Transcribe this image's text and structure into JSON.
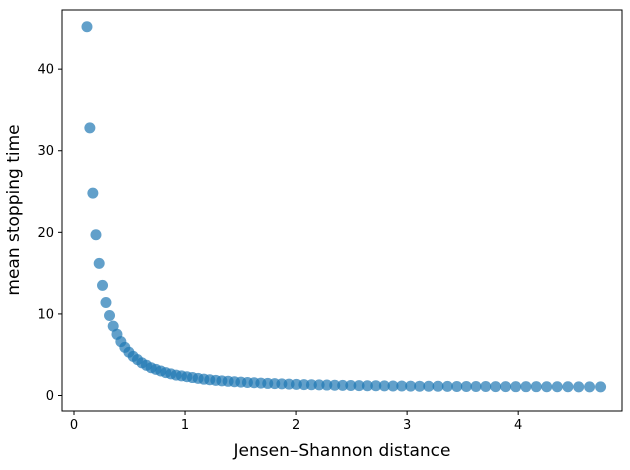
{
  "figure": {
    "background": "#ffffff",
    "spine_color": "#000000",
    "text_color": "#000000"
  },
  "chart_data": {
    "type": "scatter",
    "title": "",
    "xlabel": "Jensen–Shannon distance",
    "ylabel": "mean stopping time",
    "xlim": [
      -0.108,
      4.935
    ],
    "ylim": [
      -1.9,
      47.25
    ],
    "x_ticks": [
      0,
      1,
      2,
      3,
      4
    ],
    "y_ticks": [
      0,
      10,
      20,
      30,
      40
    ],
    "grid": false,
    "legend": null,
    "marker": {
      "color": "#1f77b4",
      "opacity": 0.7,
      "radius_px": 5.5
    },
    "series": [
      {
        "name": "mean stopping time",
        "x": [
          0.117,
          0.143,
          0.17,
          0.198,
          0.227,
          0.257,
          0.288,
          0.32,
          0.353,
          0.387,
          0.422,
          0.458,
          0.495,
          0.533,
          0.572,
          0.612,
          0.653,
          0.695,
          0.738,
          0.782,
          0.827,
          0.873,
          0.92,
          0.968,
          1.017,
          1.067,
          1.118,
          1.17,
          1.223,
          1.277,
          1.332,
          1.388,
          1.445,
          1.503,
          1.562,
          1.622,
          1.683,
          1.745,
          1.808,
          1.872,
          1.937,
          2.003,
          2.07,
          2.138,
          2.207,
          2.277,
          2.348,
          2.42,
          2.493,
          2.567,
          2.642,
          2.718,
          2.795,
          2.873,
          2.952,
          3.032,
          3.113,
          3.195,
          3.278,
          3.362,
          3.447,
          3.533,
          3.62,
          3.708,
          3.797,
          3.887,
          3.978,
          4.07,
          4.163,
          4.257,
          4.352,
          4.448,
          4.545,
          4.643,
          4.742
        ],
        "y": [
          45.2,
          32.8,
          24.8,
          19.7,
          16.2,
          13.5,
          11.4,
          9.8,
          8.5,
          7.5,
          6.6,
          5.9,
          5.3,
          4.8,
          4.4,
          4.0,
          3.7,
          3.4,
          3.2,
          3.0,
          2.8,
          2.65,
          2.5,
          2.4,
          2.3,
          2.2,
          2.1,
          2.0,
          1.93,
          1.86,
          1.8,
          1.74,
          1.69,
          1.64,
          1.6,
          1.56,
          1.52,
          1.48,
          1.45,
          1.42,
          1.39,
          1.36,
          1.34,
          1.32,
          1.3,
          1.28,
          1.26,
          1.24,
          1.23,
          1.21,
          1.2,
          1.19,
          1.18,
          1.17,
          1.16,
          1.15,
          1.14,
          1.13,
          1.13,
          1.12,
          1.11,
          1.11,
          1.1,
          1.1,
          1.09,
          1.09,
          1.08,
          1.08,
          1.08,
          1.07,
          1.07,
          1.07,
          1.06,
          1.06,
          1.06
        ]
      }
    ]
  }
}
